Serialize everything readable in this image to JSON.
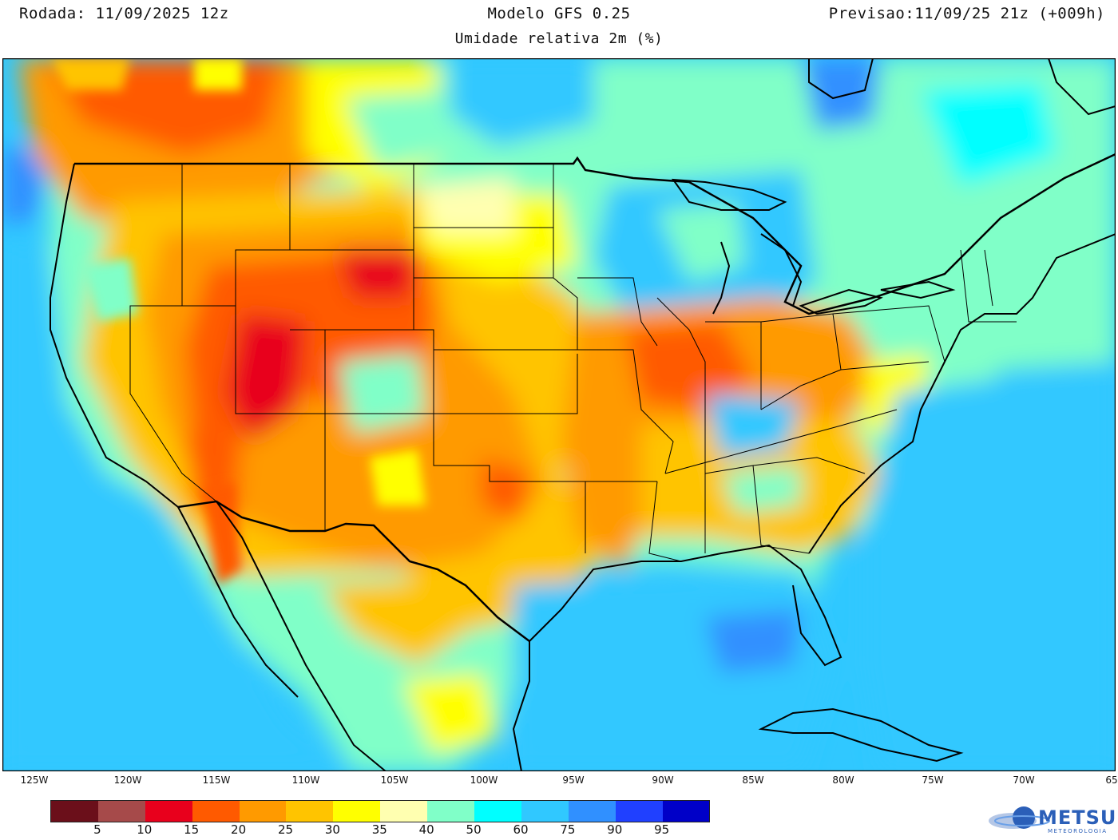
{
  "header": {
    "run": "Rodada: 11/09/2025 12z",
    "model": "Modelo GFS 0.25",
    "forecast": "Previsao:11/09/25 21z (+009h)",
    "variable": "Umidade relativa 2m (%)"
  },
  "longitude_labels": [
    "125W",
    "120W",
    "115W",
    "110W",
    "105W",
    "100W",
    "95W",
    "90W",
    "85W",
    "80W",
    "75W",
    "70W",
    "65"
  ],
  "legend": {
    "colors": [
      "#6b0f1a",
      "#a64a4a",
      "#e8001c",
      "#ff5a00",
      "#ff9a00",
      "#ffc400",
      "#ffff00",
      "#ffffb0",
      "#80ffc8",
      "#00ffff",
      "#30c8ff",
      "#3090ff",
      "#2040ff",
      "#0000c8"
    ],
    "labels": [
      "5",
      "10",
      "15",
      "20",
      "25",
      "30",
      "35",
      "40",
      "50",
      "60",
      "75",
      "90",
      "95"
    ]
  },
  "logo": {
    "name": "METSUL",
    "sub": "METEOROLOGIA"
  }
}
